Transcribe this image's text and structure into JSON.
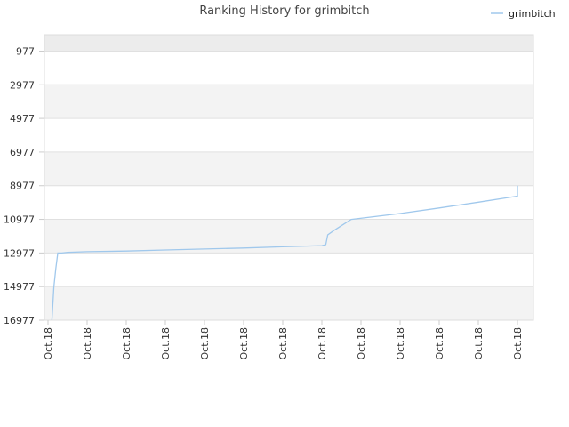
{
  "chart_data": {
    "type": "line",
    "title": "Ranking History for grimbitch",
    "xlabel": "",
    "ylabel": "",
    "y_inverted": true,
    "ylim": [
      16977,
      0
    ],
    "y_ticks": [
      977,
      2977,
      4977,
      6977,
      8977,
      10977,
      12977,
      14977,
      16977
    ],
    "x_ticks": [
      "Oct.18",
      "Oct.18",
      "Oct.18",
      "Oct.18",
      "Oct.18",
      "Oct.18",
      "Oct.18",
      "Oct.18",
      "Oct.18",
      "Oct.18",
      "Oct.18",
      "Oct.18",
      "Oct.18"
    ],
    "grid": true,
    "legend_position": "top-right",
    "series": [
      {
        "name": "grimbitch",
        "color": "#a0c8ec",
        "points": [
          [
            0.1,
            16977
          ],
          [
            0.15,
            15000
          ],
          [
            0.2,
            13900
          ],
          [
            0.25,
            12977
          ],
          [
            0.35,
            12977
          ],
          [
            0.5,
            12940
          ],
          [
            1.0,
            12900
          ],
          [
            2.0,
            12860
          ],
          [
            3.0,
            12800
          ],
          [
            4.0,
            12740
          ],
          [
            5.0,
            12680
          ],
          [
            6.0,
            12610
          ],
          [
            7.0,
            12540
          ],
          [
            7.1,
            12480
          ],
          [
            7.15,
            11900
          ],
          [
            7.3,
            11650
          ],
          [
            7.75,
            10977
          ],
          [
            9.0,
            10630
          ],
          [
            10.0,
            10300
          ],
          [
            11.0,
            9960
          ],
          [
            12.0,
            9600
          ],
          [
            12.0,
            8977
          ]
        ]
      }
    ]
  }
}
